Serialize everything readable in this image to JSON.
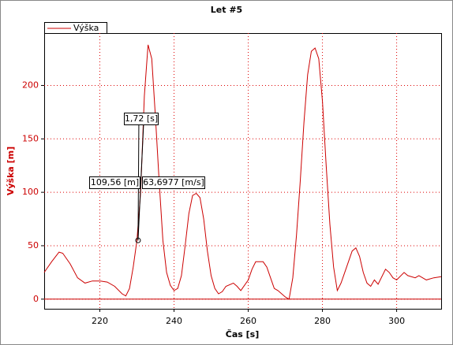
{
  "chart_data": {
    "type": "line",
    "title": "Let #5",
    "xlabel": "Čas [s]",
    "ylabel": "Výška [m]",
    "x": [
      205,
      207,
      209,
      210,
      212,
      214,
      216,
      218,
      220,
      222,
      224,
      226,
      227,
      228,
      229,
      230,
      231,
      232,
      233,
      234,
      235,
      236,
      237,
      238,
      239,
      240,
      241,
      242,
      243,
      244,
      245,
      246,
      247,
      248,
      249,
      250,
      251,
      252,
      253,
      254,
      256,
      257,
      258,
      260,
      261,
      262,
      264,
      265,
      266,
      267,
      268,
      270,
      271,
      272,
      273,
      274,
      275,
      276,
      277,
      278,
      279,
      280,
      281,
      282,
      283,
      284,
      285,
      286,
      287,
      288,
      289,
      290,
      291,
      292,
      293,
      294,
      295,
      297,
      298,
      299,
      300,
      302,
      303,
      305,
      306,
      308,
      310,
      312
    ],
    "series": [
      {
        "name": "Výška",
        "color": "#cc0000",
        "values": [
          25,
          35,
          44,
          43,
          33,
          20,
          15,
          17,
          17,
          16,
          12,
          5,
          3,
          10,
          30,
          55,
          100,
          190,
          238,
          225,
          170,
          110,
          55,
          25,
          13,
          8,
          10,
          22,
          50,
          80,
          97,
          99,
          95,
          75,
          45,
          22,
          10,
          5,
          7,
          12,
          15,
          12,
          8,
          18,
          28,
          35,
          35,
          30,
          20,
          10,
          8,
          2,
          0,
          20,
          60,
          110,
          165,
          210,
          232,
          235,
          225,
          185,
          125,
          70,
          30,
          8,
          15,
          25,
          35,
          45,
          48,
          40,
          25,
          15,
          12,
          18,
          14,
          28,
          25,
          20,
          18,
          25,
          22,
          20,
          22,
          18,
          20,
          21
        ]
      }
    ],
    "xlim": [
      205,
      312
    ],
    "xticks": [
      220,
      240,
      260,
      280,
      300
    ],
    "ylim": [
      -9,
      249
    ],
    "yticks": [
      0,
      50,
      100,
      150,
      200
    ],
    "grid": true,
    "legend": "top-left",
    "marker": {
      "x": 230.3,
      "y": 55
    },
    "annotations": [
      "1,72 [s]",
      "109,56 [m]",
      "63,6977 [m/s]"
    ]
  }
}
